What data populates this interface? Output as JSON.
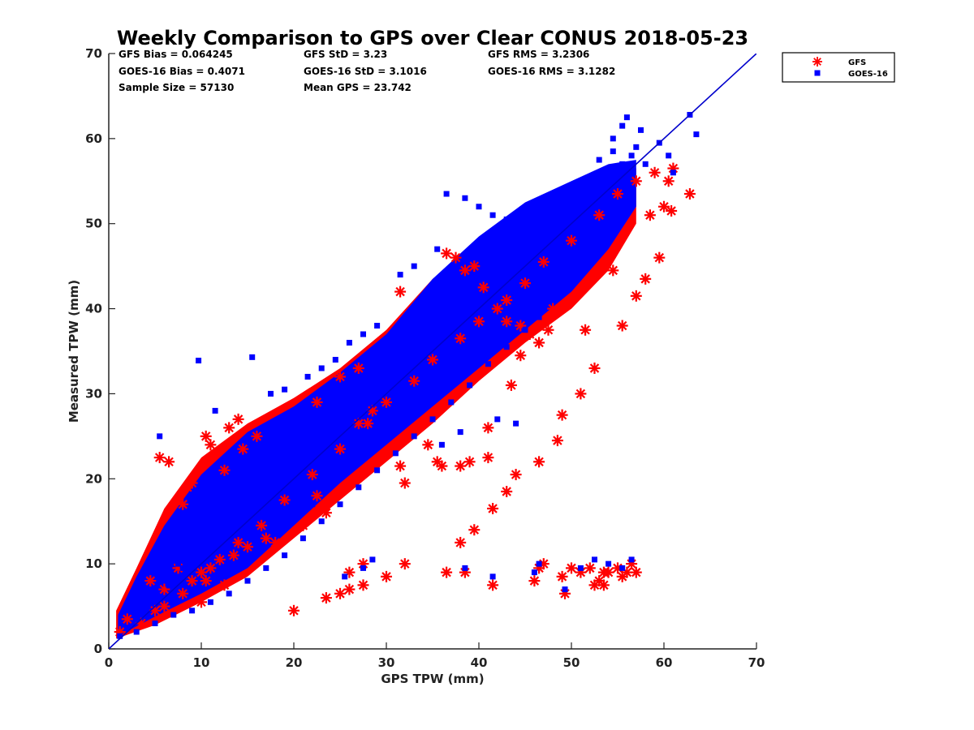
{
  "chart_data": {
    "type": "scatter",
    "title": "Weekly Comparison to GPS over Clear CONUS 2018-05-23",
    "xlabel": "GPS TPW (mm)",
    "ylabel": "Measured TPW (mm)",
    "xlim": [
      0,
      70
    ],
    "ylim": [
      0,
      70
    ],
    "xticks": [
      "0",
      "10",
      "20",
      "30",
      "40",
      "50",
      "60",
      "70"
    ],
    "yticks": [
      "0",
      "10",
      "20",
      "30",
      "40",
      "50",
      "60",
      "70"
    ],
    "grid": false,
    "legend_position": "outside-top-right",
    "stats": [
      "GFS Bias = 0.064245",
      "GFS StD = 3.23",
      "GFS RMS = 3.2306",
      "GOES-16 Bias = 0.4071",
      "GOES-16 StD = 3.1016",
      "GOES-16 RMS = 3.1282",
      "Sample Size = 57130",
      "Mean GPS = 23.742"
    ],
    "reference_line": {
      "x": [
        0,
        70
      ],
      "y": [
        0,
        70
      ],
      "color": "#0000cc"
    },
    "series": [
      {
        "name": "GFS",
        "marker": "asterisk",
        "color": "#ff0000",
        "x": [
          1.2,
          2.0,
          3.5,
          5.0,
          6.0,
          8.0,
          10.0,
          12.0,
          14.0,
          16.5,
          19.0,
          22.0,
          25.0,
          28.0,
          30.0,
          33.0,
          35.0,
          38.0,
          40.0,
          43.0,
          45.0,
          47.0,
          50.0,
          53.0,
          55.0,
          57.0,
          59.0,
          61.0,
          5.5,
          6.5,
          8.5,
          10.5,
          11.0,
          12.5,
          14.5,
          16.0,
          13.0,
          14.0,
          8.0,
          9.0,
          22.5,
          25.0,
          27.0,
          31.5,
          36.5,
          37.5,
          38.5,
          39.5,
          40.5,
          42.0,
          43.0,
          44.5,
          45.5,
          46.5,
          47.5,
          48.0,
          51.5,
          54.5,
          31.5,
          32.0,
          34.5,
          35.5,
          36.0,
          38.0,
          39.0,
          41.0,
          28.5,
          27.0,
          22.5,
          21.0,
          23.5,
          17.0,
          18.0,
          13.5,
          15.0,
          10.5,
          11.0,
          12.5,
          20.0,
          25.0,
          23.5,
          26.0,
          27.5,
          30.0,
          32.0,
          36.5,
          38.0,
          39.5,
          41.5,
          43.0,
          44.0,
          46.5,
          48.5,
          49.0,
          51.0,
          52.5,
          55.5,
          57.0,
          58.0,
          59.5,
          60.0,
          60.5,
          62.8,
          60.8,
          58.5,
          41.0,
          43.5,
          44.5,
          26.0,
          27.5,
          7.5,
          6.0,
          9.0,
          10.0,
          4.5,
          38.5,
          41.5,
          46.0,
          46.5,
          47.0,
          49.3,
          50.0,
          51.0,
          52.0,
          53.0,
          53.5,
          54.0,
          55.0,
          55.5,
          56.0,
          56.5,
          57.0,
          49.0,
          52.5,
          53.5
        ],
        "y": [
          2.0,
          3.5,
          3.0,
          4.5,
          5.0,
          6.5,
          9.0,
          10.5,
          12.5,
          14.5,
          17.5,
          20.5,
          23.5,
          26.5,
          29.0,
          31.5,
          34.0,
          36.5,
          38.5,
          41.0,
          43.0,
          45.5,
          48.0,
          51.0,
          53.5,
          55.0,
          56.0,
          56.5,
          22.5,
          22.0,
          19.0,
          25.0,
          24.0,
          21.0,
          23.5,
          25.0,
          26.0,
          27.0,
          17.0,
          19.5,
          29.0,
          32.0,
          33.0,
          42.0,
          46.5,
          46.0,
          44.5,
          45.0,
          42.5,
          40.0,
          38.5,
          38.0,
          37.0,
          36.0,
          37.5,
          40.0,
          37.5,
          44.5,
          21.5,
          19.5,
          24.0,
          22.0,
          21.5,
          21.5,
          22.0,
          22.5,
          28.0,
          26.5,
          18.0,
          14.5,
          16.0,
          13.0,
          12.5,
          11.0,
          12.0,
          8.0,
          9.5,
          7.5,
          4.5,
          6.5,
          6.0,
          7.0,
          7.5,
          8.5,
          10.0,
          9.0,
          12.5,
          14.0,
          16.5,
          18.5,
          20.5,
          22.0,
          24.5,
          27.5,
          30.0,
          33.0,
          38.0,
          41.5,
          43.5,
          46.0,
          52.0,
          55.0,
          53.5,
          51.5,
          51.0,
          26.0,
          31.0,
          34.5,
          9.0,
          10.0,
          9.5,
          7.0,
          8.0,
          5.5,
          8.0,
          9.0,
          7.5,
          8.0,
          9.5,
          10.0,
          6.5,
          9.5,
          9.0,
          9.5,
          8.0,
          7.5,
          9.0,
          9.5,
          8.5,
          9.0,
          10.0,
          9.0,
          8.5,
          7.5,
          9.0
        ]
      },
      {
        "name": "GOES-16",
        "marker": "square",
        "color": "#0000ff",
        "x": [
          1.2,
          2.0,
          3.0,
          4.0,
          5.0,
          6.5,
          8.0,
          10.0,
          12.0,
          14.0,
          16.0,
          18.0,
          20.0,
          22.0,
          24.0,
          26.0,
          28.0,
          30.0,
          32.0,
          34.0,
          36.0,
          38.0,
          40.0,
          42.0,
          44.0,
          46.0,
          48.0,
          50.0,
          52.0,
          54.0,
          56.0,
          58.0,
          9.7,
          15.5,
          5.5,
          11.5,
          17.5,
          19.0,
          21.5,
          23.0,
          24.5,
          26.0,
          27.5,
          29.0,
          31.5,
          33.0,
          35.5,
          36.5,
          38.5,
          40.0,
          41.5,
          43.0,
          44.5,
          45.0,
          48.5,
          50.0,
          51.5,
          53.0,
          54.5,
          55.5,
          56.0,
          57.5,
          59.5,
          60.5,
          61.0,
          62.8,
          63.5,
          54.5,
          55.5,
          56.5,
          57.0,
          52.5,
          51.0,
          49.0,
          47.5,
          46.5,
          45.0,
          43.0,
          41.0,
          39.0,
          37.0,
          35.0,
          33.0,
          31.0,
          29.0,
          27.0,
          25.0,
          23.0,
          21.0,
          19.0,
          17.0,
          15.0,
          13.0,
          11.0,
          9.0,
          7.0,
          5.0,
          3.0,
          27.5,
          28.5,
          25.5,
          38.5,
          41.5,
          46.0,
          46.5,
          49.3,
          51.0,
          52.5,
          54.0,
          55.5,
          56.5,
          30.0,
          36.0,
          38.0,
          42.0,
          44.0,
          7.5,
          6.0,
          8.5,
          10.5,
          12.0,
          14.5,
          22.0,
          23.5,
          25.0,
          26.5
        ],
        "y": [
          1.5,
          2.5,
          3.5,
          5.0,
          6.0,
          7.5,
          9.5,
          11.5,
          13.5,
          15.5,
          17.5,
          19.5,
          21.5,
          23.5,
          25.5,
          27.5,
          29.5,
          31.5,
          33.5,
          35.5,
          37.5,
          39.5,
          41.0,
          43.0,
          45.0,
          47.0,
          49.0,
          51.0,
          52.5,
          54.0,
          55.5,
          57.0,
          33.9,
          34.3,
          25.0,
          28.0,
          30.0,
          30.5,
          32.0,
          33.0,
          34.0,
          36.0,
          37.0,
          38.0,
          44.0,
          45.0,
          47.0,
          53.5,
          53.0,
          52.0,
          51.0,
          50.5,
          50.0,
          49.0,
          52.0,
          53.5,
          55.0,
          57.5,
          60.0,
          61.5,
          62.5,
          61.0,
          59.5,
          58.0,
          56.0,
          62.8,
          60.5,
          58.5,
          57.0,
          58.0,
          59.0,
          54.0,
          47.0,
          43.0,
          41.0,
          39.0,
          37.5,
          35.5,
          33.5,
          31.0,
          29.0,
          27.0,
          25.0,
          23.0,
          21.0,
          19.0,
          17.0,
          15.0,
          13.0,
          11.0,
          9.5,
          8.0,
          6.5,
          5.5,
          4.5,
          4.0,
          3.0,
          2.0,
          9.5,
          10.5,
          8.5,
          9.5,
          8.5,
          9.0,
          10.0,
          7.0,
          9.5,
          10.5,
          10.0,
          9.5,
          10.5,
          26.5,
          24.0,
          25.5,
          27.0,
          26.5,
          10.0,
          12.0,
          10.5,
          12.5,
          14.0,
          16.0,
          17.0,
          19.0,
          21.0,
          22.5
        ]
      }
    ]
  }
}
